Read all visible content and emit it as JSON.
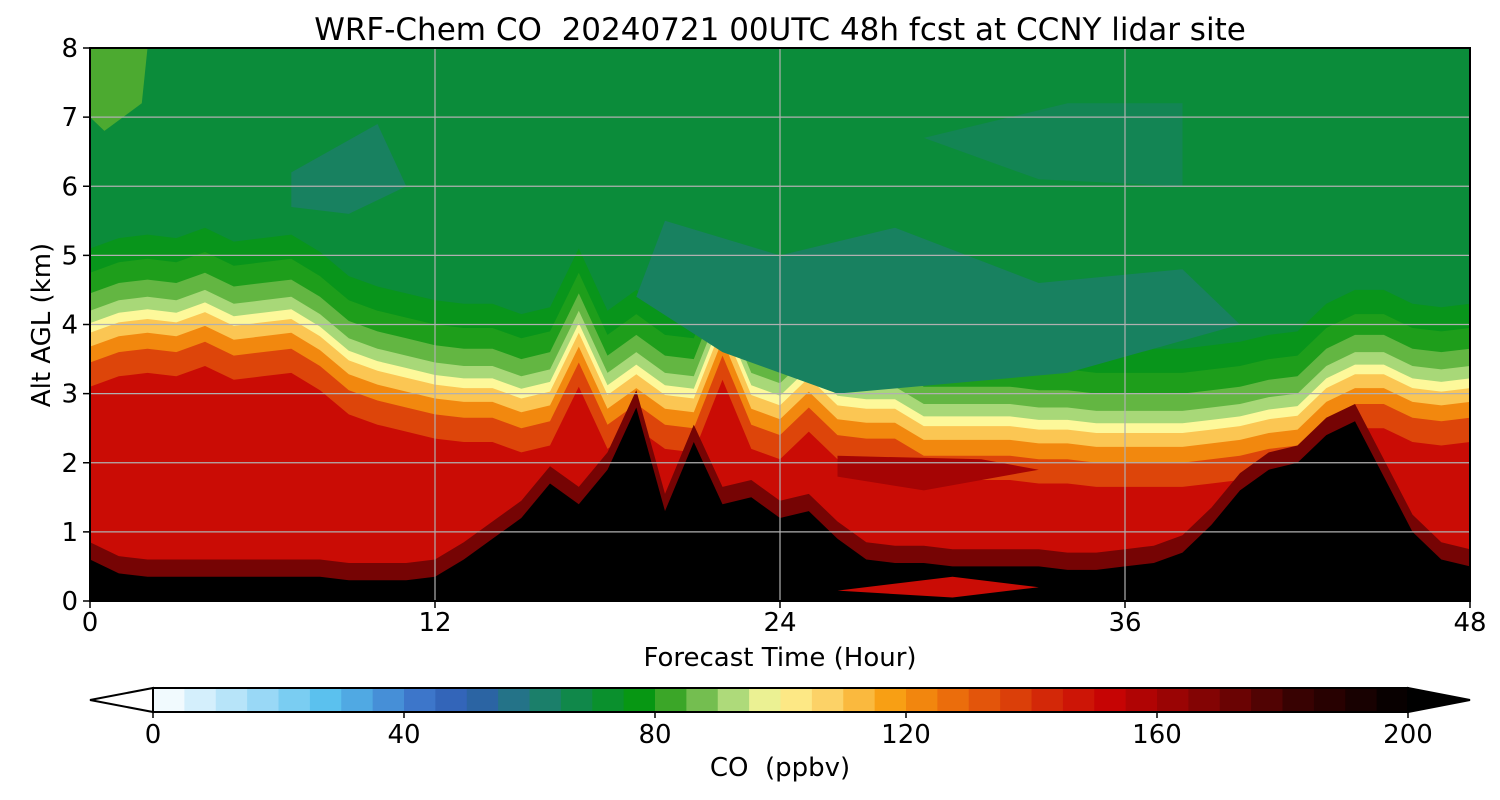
{
  "chart_data": {
    "type": "heatmap",
    "title": "WRF-Chem CO  20240721 00UTC 48h fcst at CCNY lidar site",
    "xlabel": "Forecast Time (Hour)",
    "ylabel": "Alt AGL (km)",
    "xlim": [
      0,
      48
    ],
    "ylim": [
      0,
      8
    ],
    "xticks": [
      0,
      12,
      24,
      36,
      48
    ],
    "yticks": [
      0,
      1,
      2,
      3,
      4,
      5,
      6,
      7,
      8
    ],
    "grid": true,
    "colorbar": {
      "label": "CO  (ppbv)",
      "ticks": [
        0,
        40,
        80,
        120,
        160,
        200
      ],
      "range": [
        0,
        200
      ],
      "extend": "both",
      "stops": [
        {
          "v": 0,
          "c": "#ffffff"
        },
        {
          "v": 15,
          "c": "#a8def8"
        },
        {
          "v": 28,
          "c": "#58c0ee"
        },
        {
          "v": 42,
          "c": "#3e78cc"
        },
        {
          "v": 50,
          "c": "#2e5cb0"
        },
        {
          "v": 60,
          "c": "#207a7a"
        },
        {
          "v": 70,
          "c": "#0b8c3a"
        },
        {
          "v": 78,
          "c": "#079810"
        },
        {
          "v": 84,
          "c": "#4caa30"
        },
        {
          "v": 92,
          "c": "#a8d878"
        },
        {
          "v": 99,
          "c": "#fdf89a"
        },
        {
          "v": 108,
          "c": "#fcd064"
        },
        {
          "v": 118,
          "c": "#f89c10"
        },
        {
          "v": 128,
          "c": "#ea6a0c"
        },
        {
          "v": 142,
          "c": "#d42a08"
        },
        {
          "v": 152,
          "c": "#c80404"
        },
        {
          "v": 166,
          "c": "#8a0404"
        },
        {
          "v": 182,
          "c": "#3a0202"
        },
        {
          "v": 200,
          "c": "#000000"
        }
      ]
    },
    "times_h": [
      0,
      1,
      2,
      3,
      4,
      5,
      6,
      7,
      8,
      9,
      10,
      11,
      12,
      13,
      14,
      15,
      16,
      17,
      18,
      19,
      20,
      21,
      22,
      23,
      24,
      25,
      26,
      27,
      28,
      29,
      30,
      31,
      32,
      33,
      34,
      35,
      36,
      37,
      38,
      39,
      40,
      41,
      42,
      43,
      44,
      45,
      46,
      47,
      48
    ],
    "boundary_layer_top_km": [
      3.8,
      3.95,
      4.0,
      3.95,
      4.1,
      3.9,
      3.95,
      4.0,
      3.75,
      3.4,
      3.25,
      3.15,
      3.05,
      3.0,
      3.0,
      2.85,
      2.95,
      3.8,
      2.9,
      3.2,
      2.9,
      2.85,
      3.9,
      2.9,
      2.75,
      3.15,
      2.75,
      2.7,
      2.7,
      2.45,
      2.45,
      2.45,
      2.45,
      2.4,
      2.4,
      2.35,
      2.35,
      2.35,
      2.35,
      2.4,
      2.45,
      2.55,
      2.6,
      3.0,
      3.2,
      3.2,
      3.0,
      2.95,
      3.0
    ],
    "dense_layer_top_km": [
      0.6,
      0.4,
      0.35,
      0.35,
      0.35,
      0.35,
      0.35,
      0.35,
      0.35,
      0.3,
      0.3,
      0.3,
      0.35,
      0.6,
      0.9,
      1.2,
      1.7,
      1.4,
      1.9,
      2.8,
      1.3,
      2.3,
      1.4,
      1.5,
      1.2,
      1.3,
      0.9,
      0.6,
      0.55,
      0.55,
      0.5,
      0.5,
      0.5,
      0.5,
      0.45,
      0.45,
      0.5,
      0.55,
      0.7,
      1.1,
      1.6,
      1.9,
      2.0,
      2.4,
      2.6,
      1.8,
      1.0,
      0.6,
      0.5
    ],
    "free_troposphere_ppbv": 72,
    "boundary_layer_ppbv": 155,
    "surface_layer_ppbv": 200
  }
}
